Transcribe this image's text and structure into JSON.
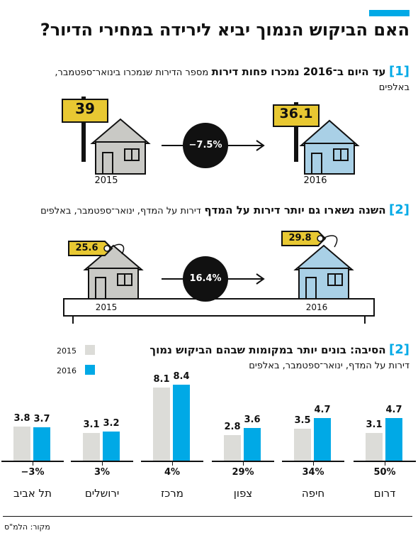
{
  "title": "האם הביקוש הנמוך יביא לירידה במחירי הדיור?",
  "section1": {
    "num": "[1]",
    "heading": "עד היום ב־2016 נמכרו פחות דירות",
    "subtitle": "מספר הדירות שנמכרו בינואר־ספטמבר,",
    "subtitle2": "באלפים",
    "sign_2015": "39",
    "sign_2016": "36.1",
    "change": "−7.5%",
    "year_left": "2015",
    "year_right": "2016"
  },
  "section2": {
    "num": "[2]",
    "heading": "השנה נשארו גם יותר דירות על המדף",
    "subtitle": "דירות על המדף, ינואר־ספטמבר, באלפים",
    "tag_2015": "25.6",
    "tag_2016": "29.8",
    "change": "16.4%",
    "year_left": "2015",
    "year_right": "2016"
  },
  "section3": {
    "num": "[2]",
    "heading": "הסיבה: בונים יותר במקומות שבהם הביקוש נמוך",
    "subtitle": "דירות על המדף, ינואר־ספטמבר, באלפים"
  },
  "colors": {
    "y2015": "#dcdcd8",
    "y2016": "#00a9e6",
    "accent": "#00a9e6",
    "sign": "#e8c832",
    "house_old": "#c9c9c5",
    "house_new": "#a9d0e6"
  },
  "chart_data": {
    "type": "bar",
    "categories": [
      "דרום",
      "חיפה",
      "צפון",
      "מרכז",
      "ירושלים",
      "תל אביב"
    ],
    "series": [
      {
        "name": "2015",
        "values": [
          3.1,
          3.5,
          2.8,
          8.1,
          3.1,
          3.8
        ]
      },
      {
        "name": "2016",
        "values": [
          4.7,
          4.7,
          3.6,
          8.4,
          3.2,
          3.7
        ]
      }
    ],
    "value_labels_2015": [
      "3.1",
      "3.5",
      "2.8",
      "8.1",
      "3.1",
      "3.8"
    ],
    "value_labels_2016": [
      "4.7",
      "4.7",
      "3.6",
      "8.4",
      "3.2",
      "3.7"
    ],
    "changes": [
      "50%",
      "34%",
      "29%",
      "4%",
      "3%",
      "−3%"
    ],
    "ylim": [
      0,
      8.4
    ],
    "legend": [
      "2015",
      "2016"
    ],
    "legend_placement": "top-left"
  },
  "source": "מקור: הלמ\"ס"
}
